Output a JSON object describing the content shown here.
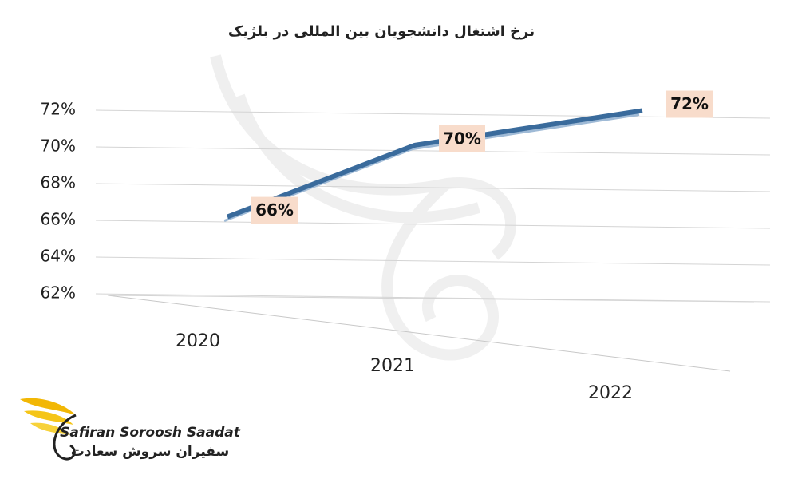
{
  "chart_data": {
    "type": "line",
    "title": "نرخ اشتغال دانشجویان بین المللی در بلژیک",
    "categories": [
      "2020",
      "2021",
      "2022"
    ],
    "values": [
      66,
      70,
      72
    ],
    "value_labels": [
      "66%",
      "70%",
      "72%"
    ],
    "color": "#3a6b9c",
    "ylim": [
      62,
      72
    ],
    "yticks": [
      {
        "value": 62,
        "label": "62%"
      },
      {
        "value": 64,
        "label": "64%"
      },
      {
        "value": 66,
        "label": "66%"
      },
      {
        "value": 68,
        "label": "68%"
      },
      {
        "value": 70,
        "label": "70%"
      },
      {
        "value": 72,
        "label": "72%"
      }
    ],
    "grid": true
  },
  "logo": {
    "name_en": "Safiran Soroosh Saadat",
    "name_fa": "سفیران سروش سعادت"
  }
}
